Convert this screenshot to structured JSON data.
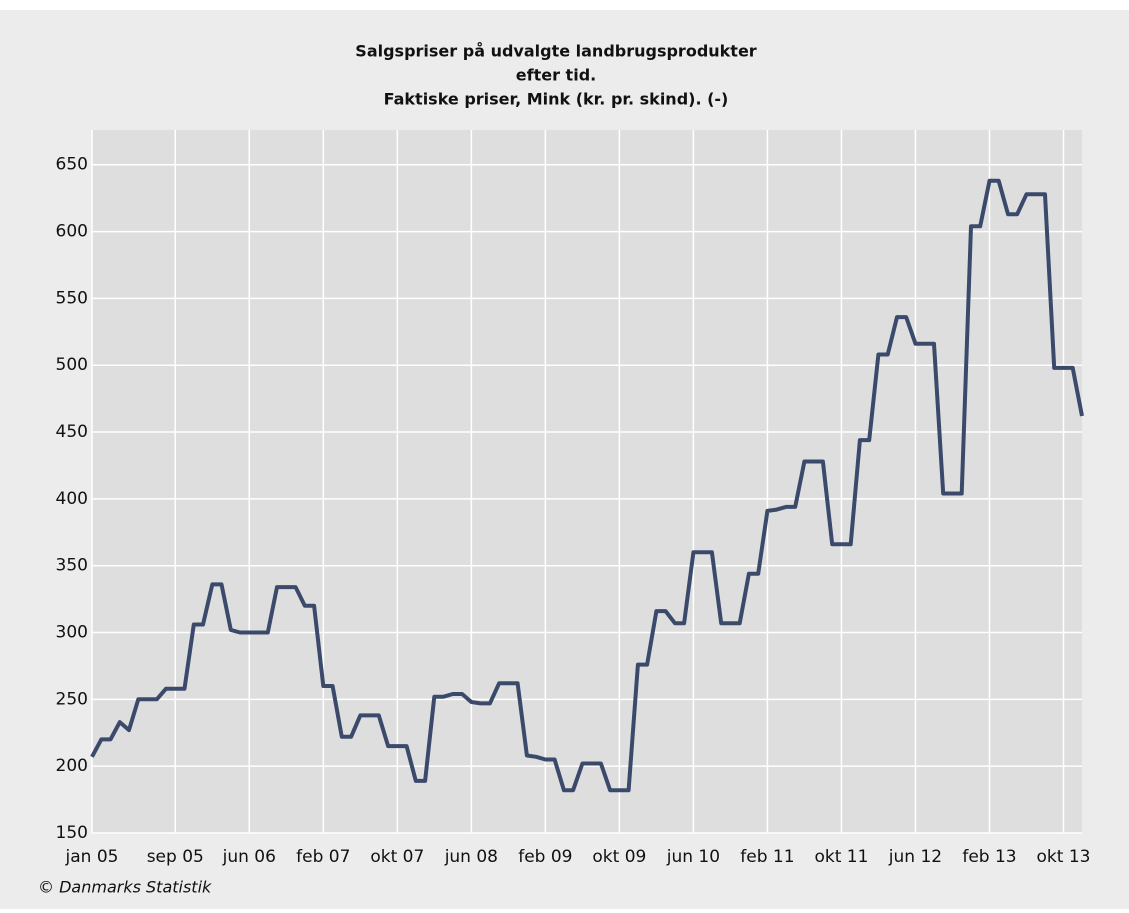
{
  "chart_data": {
    "type": "line",
    "title": [
      "Salgspriser på udvalgte landbrugsprodukter",
      "efter tid.",
      "Faktiske priser, Mink (kr. pr. skind). (-)"
    ],
    "source": "© Danmarks Statistik",
    "categories": [
      "jan 05",
      null,
      null,
      null,
      null,
      null,
      null,
      null,
      null,
      "sep 05",
      null,
      null,
      null,
      null,
      null,
      null,
      null,
      "jun 06",
      null,
      null,
      null,
      null,
      null,
      null,
      null,
      "feb 07",
      null,
      null,
      null,
      null,
      null,
      null,
      null,
      "okt 07",
      null,
      null,
      null,
      null,
      null,
      null,
      null,
      "jun 08",
      null,
      null,
      null,
      null,
      null,
      null,
      null,
      "feb 09",
      null,
      null,
      null,
      null,
      null,
      null,
      null,
      "okt 09",
      null,
      null,
      null,
      null,
      null,
      null,
      null,
      "jun 10",
      null,
      null,
      null,
      null,
      null,
      null,
      null,
      "feb 11",
      null,
      null,
      null,
      null,
      null,
      null,
      null,
      "okt 11",
      null,
      null,
      null,
      null,
      null,
      null,
      null,
      "jun 12",
      null,
      null,
      null,
      null,
      null,
      null,
      null,
      "feb 13",
      null,
      null,
      null,
      null,
      null,
      null,
      null,
      "okt 13",
      null,
      null
    ],
    "values": [
      207,
      220,
      220,
      233,
      227,
      250,
      250,
      250,
      258,
      258,
      258,
      306,
      306,
      336,
      336,
      302,
      300,
      300,
      300,
      300,
      334,
      334,
      334,
      320,
      320,
      260,
      260,
      222,
      222,
      238,
      238,
      238,
      215,
      215,
      215,
      189,
      189,
      252,
      252,
      254,
      254,
      248,
      247,
      247,
      262,
      262,
      262,
      208,
      207,
      205,
      205,
      182,
      182,
      202,
      202,
      202,
      182,
      182,
      182,
      276,
      276,
      316,
      316,
      307,
      307,
      360,
      360,
      360,
      307,
      307,
      307,
      344,
      344,
      391,
      392,
      394,
      394,
      428,
      428,
      428,
      366,
      366,
      366,
      444,
      444,
      508,
      508,
      536,
      536,
      516,
      516,
      516,
      404,
      404,
      404,
      604,
      604,
      638,
      638,
      613,
      613,
      628,
      628,
      628,
      498,
      498,
      498,
      462
    ],
    "color": "#3b4a6b",
    "ylim": [
      150,
      676
    ],
    "yticks": [
      150,
      200,
      250,
      300,
      350,
      400,
      450,
      500,
      550,
      600,
      650
    ],
    "grid": true
  }
}
